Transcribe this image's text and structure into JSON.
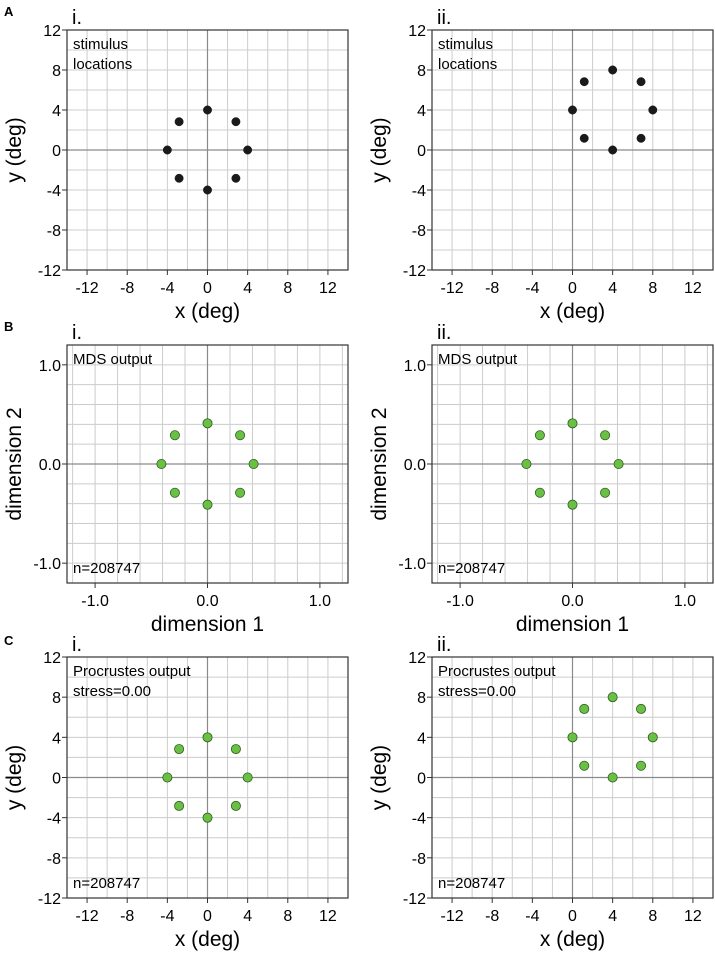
{
  "panel_letters": [
    "A",
    "B",
    "C"
  ],
  "colors": {
    "black_marker": "#1a1a1a",
    "green_marker": "#6abf45",
    "green_edge": "#2e5f1c",
    "grid": "#cccccc",
    "zero_line": "#8a8a8a",
    "frame": "#333333"
  },
  "chart_data": [
    {
      "id": "A-i",
      "type": "scatter",
      "row": "A",
      "sublabel": "i.",
      "xlabel": "x (deg)",
      "ylabel": "y (deg)",
      "xlim": [
        -14,
        14
      ],
      "ylim": [
        -12,
        12
      ],
      "xticks": [
        "-12",
        "-8",
        "-4",
        "0",
        "4",
        "8",
        "12"
      ],
      "xtick_values": [
        -12,
        -8,
        -4,
        0,
        4,
        8,
        12
      ],
      "yticks": [
        "12",
        "8",
        "4",
        "0",
        "-4",
        "-8",
        "-12"
      ],
      "ytick_values": [
        12,
        8,
        4,
        0,
        -4,
        -8,
        -12
      ],
      "grid_step": 2,
      "marker": "black",
      "annotations": [
        "stimulus",
        "locations"
      ],
      "n_label": "",
      "points": [
        [
          0,
          4
        ],
        [
          2.83,
          2.83
        ],
        [
          4,
          0
        ],
        [
          2.83,
          -2.83
        ],
        [
          0,
          -4
        ],
        [
          -2.83,
          -2.83
        ],
        [
          -4,
          0
        ],
        [
          -2.83,
          2.83
        ]
      ]
    },
    {
      "id": "A-ii",
      "type": "scatter",
      "row": "A",
      "sublabel": "ii.",
      "xlabel": "x (deg)",
      "ylabel": "y (deg)",
      "xlim": [
        -14,
        14
      ],
      "ylim": [
        -12,
        12
      ],
      "xticks": [
        "-12",
        "-8",
        "-4",
        "0",
        "4",
        "8",
        "12"
      ],
      "xtick_values": [
        -12,
        -8,
        -4,
        0,
        4,
        8,
        12
      ],
      "yticks": [
        "12",
        "8",
        "4",
        "0",
        "-4",
        "-8",
        "-12"
      ],
      "ytick_values": [
        12,
        8,
        4,
        0,
        -4,
        -8,
        -12
      ],
      "grid_step": 2,
      "marker": "black",
      "annotations": [
        "stimulus",
        "locations"
      ],
      "n_label": "",
      "points": [
        [
          4,
          8
        ],
        [
          6.83,
          6.83
        ],
        [
          8,
          4
        ],
        [
          6.83,
          1.17
        ],
        [
          4,
          0
        ],
        [
          1.17,
          1.17
        ],
        [
          0,
          4
        ],
        [
          1.17,
          6.83
        ]
      ]
    },
    {
      "id": "B-i",
      "type": "scatter",
      "row": "B",
      "sublabel": "i.",
      "xlabel": "dimension 1",
      "ylabel": "dimension 2",
      "xlim": [
        -1.25,
        1.25
      ],
      "ylim": [
        -1.2,
        1.2
      ],
      "xticks": [
        "-1.0",
        "0.0",
        "1.0"
      ],
      "xtick_values": [
        -1,
        0,
        1
      ],
      "yticks": [
        "1.0",
        "0.0",
        "-1.0"
      ],
      "ytick_values": [
        1,
        0,
        -1
      ],
      "grid_step": 0.2,
      "marker": "green",
      "annotations": [
        "MDS output"
      ],
      "n_label": "n=208747",
      "points": [
        [
          0,
          0.41
        ],
        [
          0.29,
          0.29
        ],
        [
          0.41,
          0
        ],
        [
          0.29,
          -0.29
        ],
        [
          0,
          -0.41
        ],
        [
          -0.29,
          -0.29
        ],
        [
          -0.41,
          0
        ],
        [
          -0.29,
          0.29
        ]
      ]
    },
    {
      "id": "B-ii",
      "type": "scatter",
      "row": "B",
      "sublabel": "ii.",
      "xlabel": "dimension 1",
      "ylabel": "dimension 2",
      "xlim": [
        -1.25,
        1.25
      ],
      "ylim": [
        -1.2,
        1.2
      ],
      "xticks": [
        "-1.0",
        "0.0",
        "1.0"
      ],
      "xtick_values": [
        -1,
        0,
        1
      ],
      "yticks": [
        "1.0",
        "0.0",
        "-1.0"
      ],
      "ytick_values": [
        1,
        0,
        -1
      ],
      "grid_step": 0.2,
      "marker": "green",
      "annotations": [
        "MDS output"
      ],
      "n_label": "n=208747",
      "points": [
        [
          0,
          0.41
        ],
        [
          0.29,
          0.29
        ],
        [
          0.41,
          0
        ],
        [
          0.29,
          -0.29
        ],
        [
          0,
          -0.41
        ],
        [
          -0.29,
          -0.29
        ],
        [
          -0.41,
          0
        ],
        [
          -0.29,
          0.29
        ]
      ]
    },
    {
      "id": "C-i",
      "type": "scatter",
      "row": "C",
      "sublabel": "i.",
      "xlabel": "x (deg)",
      "ylabel": "y (deg)",
      "xlim": [
        -14,
        14
      ],
      "ylim": [
        -12,
        12
      ],
      "xticks": [
        "-12",
        "-8",
        "-4",
        "0",
        "4",
        "8",
        "12"
      ],
      "xtick_values": [
        -12,
        -8,
        -4,
        0,
        4,
        8,
        12
      ],
      "yticks": [
        "12",
        "8",
        "4",
        "0",
        "-4",
        "-8",
        "-12"
      ],
      "ytick_values": [
        12,
        8,
        4,
        0,
        -4,
        -8,
        -12
      ],
      "grid_step": 2,
      "marker": "green",
      "annotations": [
        "Procrustes output",
        "stress=0.00"
      ],
      "n_label": "n=208747",
      "points": [
        [
          0,
          4
        ],
        [
          2.83,
          2.83
        ],
        [
          4,
          0
        ],
        [
          2.83,
          -2.83
        ],
        [
          0,
          -4
        ],
        [
          -2.83,
          -2.83
        ],
        [
          -4,
          0
        ],
        [
          -2.83,
          2.83
        ]
      ]
    },
    {
      "id": "C-ii",
      "type": "scatter",
      "row": "C",
      "sublabel": "ii.",
      "xlabel": "x (deg)",
      "ylabel": "y (deg)",
      "xlim": [
        -14,
        14
      ],
      "ylim": [
        -12,
        12
      ],
      "xticks": [
        "-12",
        "-8",
        "-4",
        "0",
        "4",
        "8",
        "12"
      ],
      "xtick_values": [
        -12,
        -8,
        -4,
        0,
        4,
        8,
        12
      ],
      "yticks": [
        "12",
        "8",
        "4",
        "0",
        "-4",
        "-8",
        "-12"
      ],
      "ytick_values": [
        12,
        8,
        4,
        0,
        -4,
        -8,
        -12
      ],
      "grid_step": 2,
      "marker": "green",
      "annotations": [
        "Procrustes output",
        "stress=0.00"
      ],
      "n_label": "n=208747",
      "points": [
        [
          4,
          8
        ],
        [
          6.83,
          6.83
        ],
        [
          8,
          4
        ],
        [
          6.83,
          1.17
        ],
        [
          4,
          0
        ],
        [
          1.17,
          1.17
        ],
        [
          0,
          4
        ],
        [
          1.17,
          6.83
        ]
      ]
    }
  ]
}
